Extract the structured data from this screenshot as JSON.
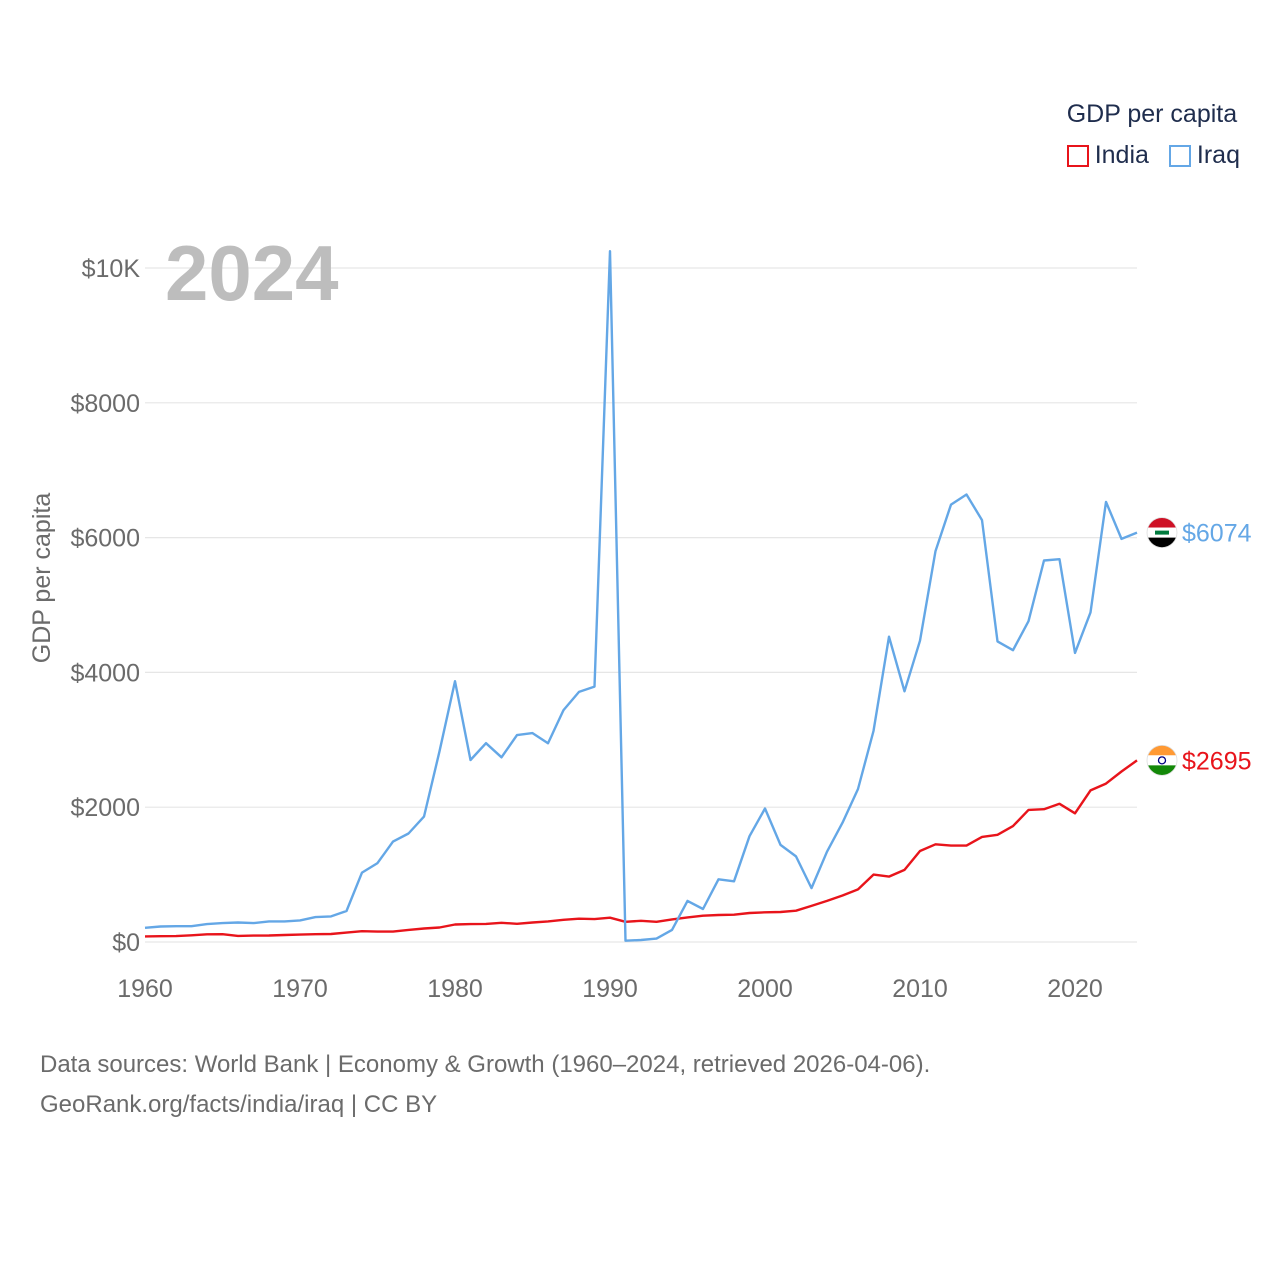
{
  "legend": {
    "title": "GDP per capita",
    "items": [
      {
        "label": "India",
        "color": "#e8141b"
      },
      {
        "label": "Iraq",
        "color": "#64a7e6"
      }
    ]
  },
  "footer": {
    "line1": "Data sources: World Bank | Economy & Growth (1960–2024, retrieved 2026-04-06).",
    "line2": "GeoRank.org/facts/india/iraq | CC BY"
  },
  "chart_data": {
    "type": "line",
    "title": "GDP per capita",
    "year_label": "2024",
    "ylabel": "GDP per capita",
    "xlabel": "",
    "xlim": [
      1960,
      2024
    ],
    "ylim": [
      0,
      10000
    ],
    "x_ticks": [
      1960,
      1970,
      1980,
      1990,
      2000,
      2010,
      2020
    ],
    "x_tick_labels": [
      "1960",
      "1970",
      "1980",
      "1990",
      "2000",
      "2010",
      "2020"
    ],
    "y_ticks": [
      0,
      2000,
      4000,
      6000,
      8000,
      10000
    ],
    "y_tick_labels": [
      "$0",
      "$2000",
      "$4000",
      "$6000",
      "$8000",
      "$10K"
    ],
    "grid": true,
    "x": [
      1960,
      1961,
      1962,
      1963,
      1964,
      1965,
      1966,
      1967,
      1968,
      1969,
      1970,
      1971,
      1972,
      1973,
      1974,
      1975,
      1976,
      1977,
      1978,
      1979,
      1980,
      1981,
      1982,
      1983,
      1984,
      1985,
      1986,
      1987,
      1988,
      1989,
      1990,
      1991,
      1992,
      1993,
      1994,
      1995,
      1996,
      1997,
      1998,
      1999,
      2000,
      2001,
      2002,
      2003,
      2004,
      2005,
      2006,
      2007,
      2008,
      2009,
      2010,
      2011,
      2012,
      2013,
      2014,
      2015,
      2016,
      2017,
      2018,
      2019,
      2020,
      2021,
      2022,
      2023,
      2024
    ],
    "series": [
      {
        "name": "India",
        "color": "#e8141b",
        "end_label": "$2695",
        "values": [
          83,
          86,
          88,
          99,
          114,
          116,
          90,
          95,
          97,
          104,
          110,
          116,
          118,
          140,
          160,
          155,
          155,
          180,
          200,
          215,
          260,
          265,
          269,
          285,
          270,
          290,
          305,
          330,
          345,
          340,
          360,
          300,
          315,
          300,
          335,
          365,
          390,
          400,
          405,
          430,
          440,
          445,
          465,
          535,
          610,
          690,
          780,
          1000,
          970,
          1070,
          1350,
          1450,
          1430,
          1430,
          1560,
          1590,
          1720,
          1960,
          1970,
          2050,
          1910,
          2250,
          2350,
          2530,
          2695
        ]
      },
      {
        "name": "Iraq",
        "color": "#64a7e6",
        "end_label": "$6074",
        "values": [
          210,
          230,
          235,
          235,
          265,
          280,
          290,
          280,
          305,
          305,
          320,
          370,
          380,
          460,
          1030,
          1170,
          1490,
          1610,
          1860,
          2830,
          3870,
          2700,
          2950,
          2740,
          3070,
          3100,
          2950,
          3440,
          3710,
          3790,
          10250,
          20,
          30,
          50,
          180,
          610,
          490,
          930,
          900,
          1570,
          1980,
          1440,
          1270,
          800,
          1340,
          1770,
          2270,
          3130,
          4530,
          3720,
          4470,
          5800,
          6490,
          6640,
          6260,
          4460,
          4330,
          4760,
          5660,
          5680,
          4290,
          4890,
          6530,
          5980,
          6074
        ]
      }
    ]
  }
}
